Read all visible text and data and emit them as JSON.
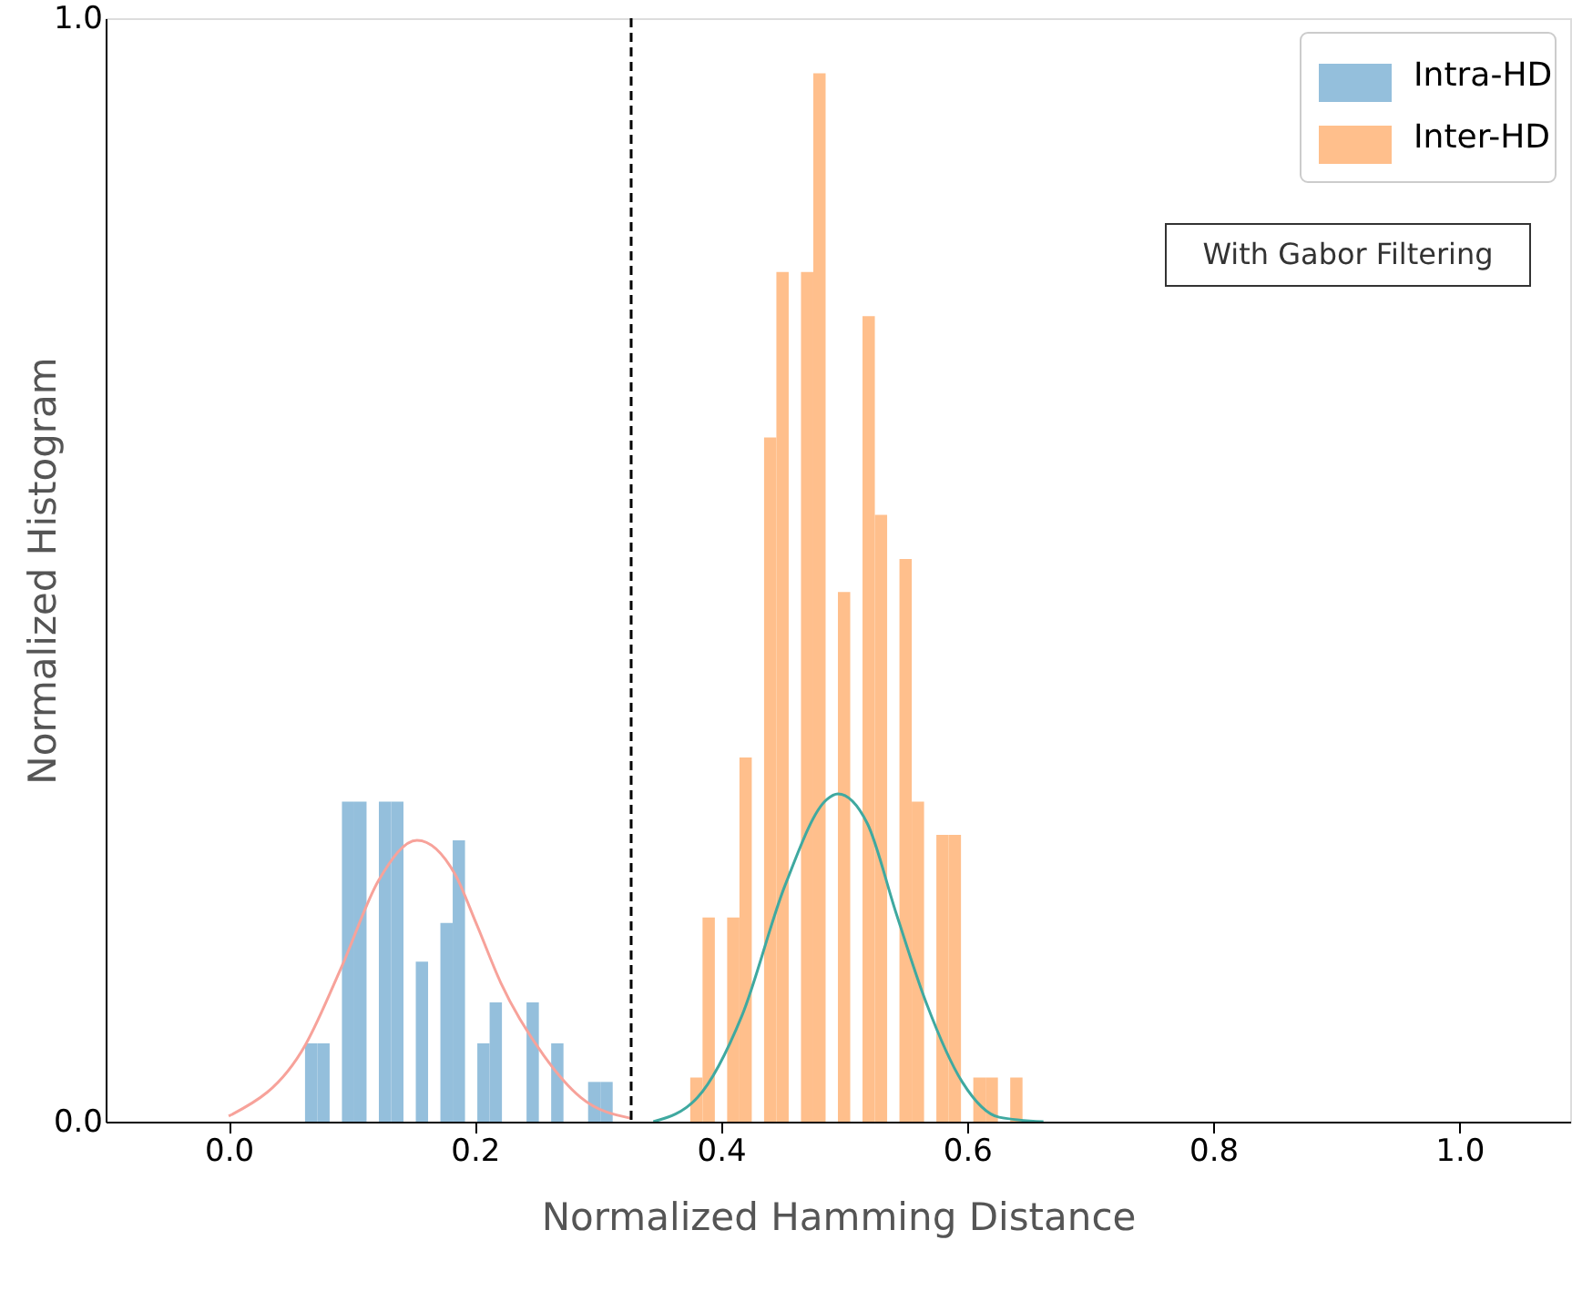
{
  "chart_data": {
    "type": "histogram",
    "xlabel": "Normalized Hamming Distance",
    "ylabel": "Normalized Histogram",
    "xlim": [
      -0.1,
      1.09
    ],
    "ylim": [
      0,
      1
    ],
    "xticks": [
      {
        "value": 0,
        "label": "0.0"
      },
      {
        "value": 0.2,
        "label": "0.2"
      },
      {
        "value": 0.4,
        "label": "0.4"
      },
      {
        "value": 0.6,
        "label": "0.6"
      },
      {
        "value": 0.8,
        "label": "0.8"
      },
      {
        "value": 1,
        "label": "1.0"
      }
    ],
    "yticks": [
      {
        "value": 0,
        "label": "0.0"
      },
      {
        "value": 1,
        "label": "1.0"
      }
    ],
    "legend": "top right",
    "grid": false,
    "annotations": [
      "With Gabor Filtering"
    ],
    "ref_lines": [
      {
        "axis": "x",
        "value": 0.327,
        "label": null,
        "color": "#000000",
        "line_style": "dashed"
      }
    ],
    "series": [
      {
        "name": "Intra-HD",
        "color": "#94bfdc",
        "bins": [
          0.062,
          0.072,
          0.082,
          0.092,
          0.102,
          0.112,
          0.122,
          0.132,
          0.142,
          0.152,
          0.162,
          0.172,
          0.182,
          0.192,
          0.202,
          0.212,
          0.222,
          0.232,
          0.242,
          0.252,
          0.262,
          0.272,
          0.282,
          0.292,
          0.302,
          0.312
        ],
        "values": [
          0.071,
          0.071,
          0,
          0.29,
          0.29,
          0,
          0.29,
          0.29,
          0,
          0.145,
          0,
          0.18,
          0.255,
          0,
          0.071,
          0.108,
          0,
          0,
          0.108,
          0,
          0.071,
          0,
          0,
          0.036,
          0.036
        ]
      },
      {
        "name": "Inter-HD",
        "color": "#ffbf8c",
        "bins": [
          0.375,
          0.385,
          0.395,
          0.405,
          0.415,
          0.425,
          0.435,
          0.445,
          0.455,
          0.465,
          0.475,
          0.485,
          0.495,
          0.505,
          0.515,
          0.525,
          0.535,
          0.545,
          0.555,
          0.565,
          0.575,
          0.585,
          0.595,
          0.605,
          0.615,
          0.625,
          0.635,
          0.645
        ],
        "values": [
          0.04,
          0.185,
          0,
          0.185,
          0.33,
          0,
          0.62,
          0.77,
          0,
          0.77,
          0.95,
          0,
          0.48,
          0,
          0.73,
          0.55,
          0,
          0.51,
          0.29,
          0,
          0.26,
          0.26,
          0,
          0.04,
          0.04,
          0,
          0.04
        ]
      },
      {
        "type": "line",
        "color": "#f7a29a",
        "x": [
          0,
          0.0625,
          0.092,
          0.122,
          0.153,
          0.184,
          0.201,
          0.221,
          0.256,
          0.286,
          0.327
        ],
        "values": [
          0.005,
          0.07,
          0.141,
          0.219,
          0.255,
          0.224,
          0.18,
          0.126,
          0.06,
          0.022,
          0.003
        ]
      },
      {
        "type": "line",
        "color": "#3fa9a0",
        "x": [
          0.345,
          0.381,
          0.417,
          0.452,
          0.486,
          0.495,
          0.519,
          0.542,
          0.566,
          0.596,
          0.626,
          0.662
        ],
        "values": [
          0,
          0.022,
          0.096,
          0.214,
          0.292,
          0.297,
          0.27,
          0.19,
          0.11,
          0.036,
          0.004,
          0
        ]
      }
    ]
  }
}
